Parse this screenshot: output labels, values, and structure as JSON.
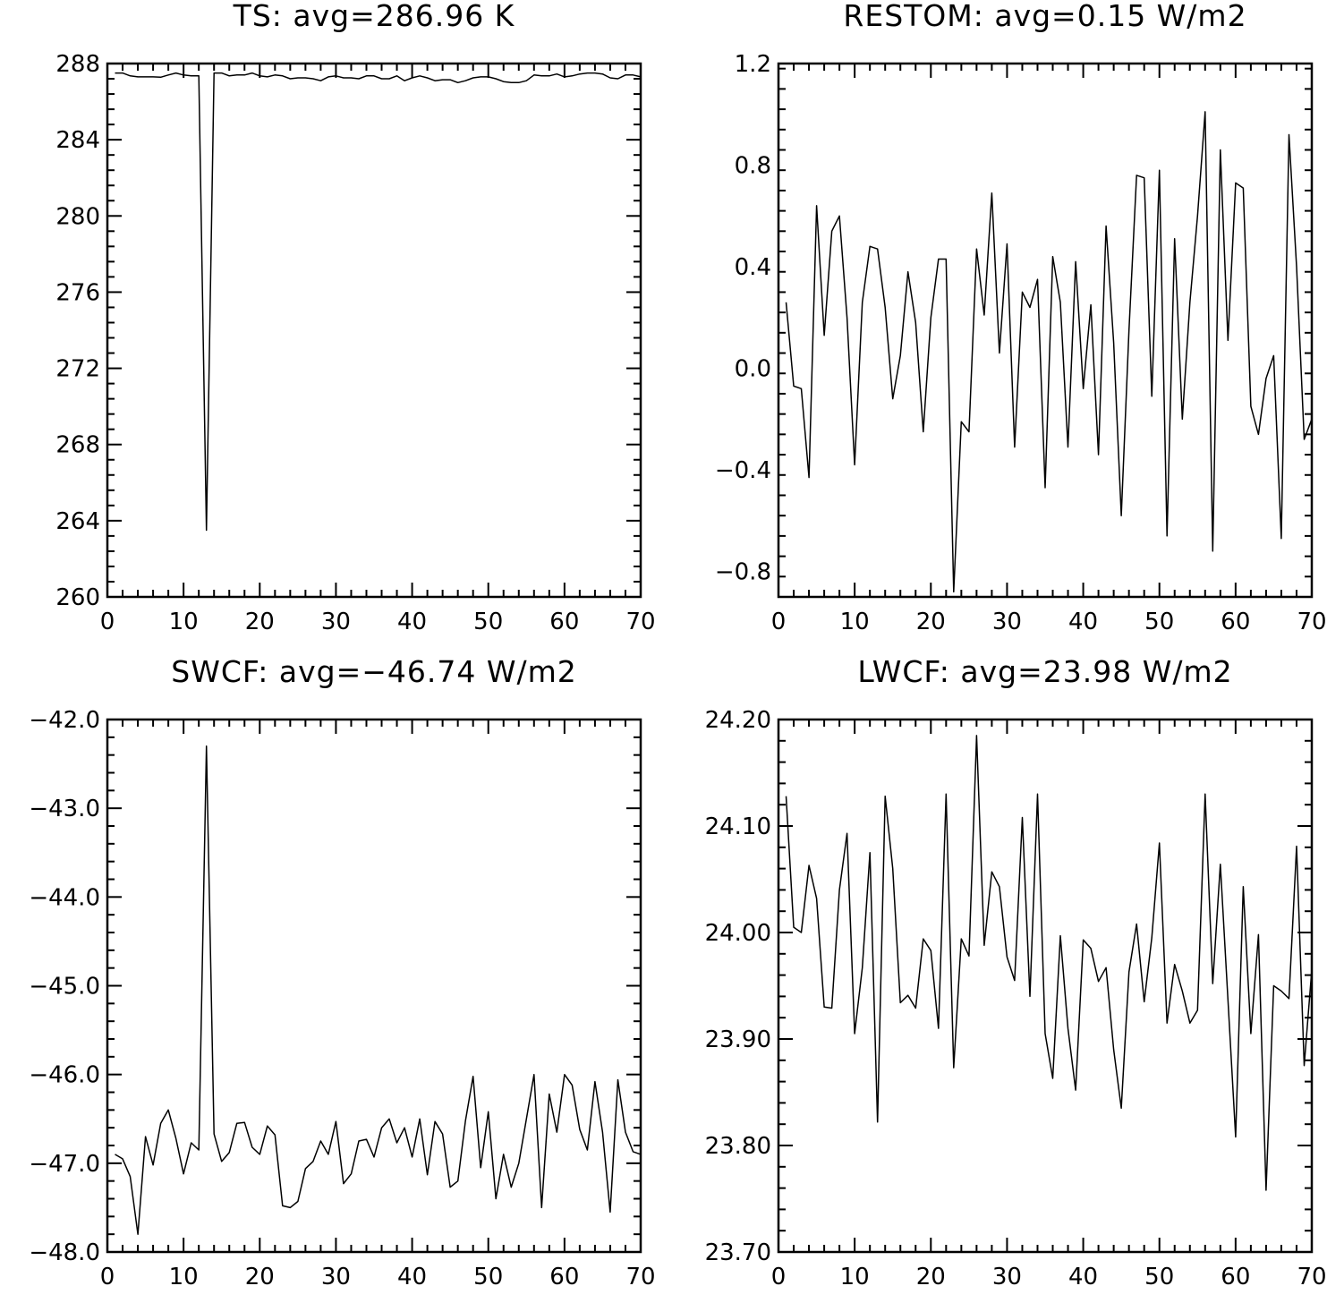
{
  "chart_data": [
    {
      "type": "line",
      "title": "TS: avg=286.96 K",
      "xlim": [
        0,
        70
      ],
      "ylim": [
        260,
        288
      ],
      "x_ticks": [
        "0",
        "10",
        "20",
        "30",
        "40",
        "50",
        "60",
        "70"
      ],
      "y_ticks": [
        "260",
        "264",
        "268",
        "272",
        "276",
        "280",
        "284",
        "288"
      ],
      "x": [
        1,
        2,
        3,
        4,
        5,
        6,
        7,
        8,
        9,
        10,
        11,
        12,
        13,
        14,
        15,
        16,
        17,
        18,
        19,
        20,
        21,
        22,
        23,
        24,
        25,
        26,
        27,
        28,
        29,
        30,
        31,
        32,
        33,
        34,
        35,
        36,
        37,
        38,
        39,
        40,
        41,
        42,
        43,
        44,
        45,
        46,
        47,
        48,
        49,
        50,
        51,
        52,
        53,
        54,
        55,
        56,
        57,
        58,
        59,
        60,
        61,
        62,
        63,
        64,
        65,
        66,
        67,
        68,
        69,
        70
      ],
      "series": [
        {
          "values": [
            287.5,
            287.5,
            287.35,
            287.3,
            287.3,
            287.3,
            287.28,
            287.4,
            287.5,
            287.4,
            287.35,
            287.35,
            263.5,
            287.5,
            287.5,
            287.35,
            287.4,
            287.4,
            287.5,
            287.35,
            287.3,
            287.4,
            287.35,
            287.2,
            287.25,
            287.25,
            287.2,
            287.1,
            287.3,
            287.35,
            287.25,
            287.25,
            287.2,
            287.35,
            287.35,
            287.2,
            287.2,
            287.35,
            287.1,
            287.25,
            287.35,
            287.25,
            287.1,
            287.15,
            287.15,
            287.0,
            287.1,
            287.25,
            287.3,
            287.3,
            287.2,
            287.05,
            287.0,
            287.0,
            287.1,
            287.4,
            287.35,
            287.35,
            287.45,
            287.3,
            287.35,
            287.45,
            287.5,
            287.5,
            287.45,
            287.25,
            287.2,
            287.4,
            287.4,
            287.3
          ]
        }
      ]
    },
    {
      "type": "line",
      "title": "RESTOM: avg=0.15 W/m2",
      "xlim": [
        0,
        70
      ],
      "ylim": [
        -0.9,
        1.2
      ],
      "x_ticks": [
        "0",
        "10",
        "20",
        "30",
        "40",
        "50",
        "60",
        "70"
      ],
      "y_ticks": [
        "−0.8",
        "−0.4",
        "0.0",
        "0.4",
        "0.8",
        "1.2"
      ],
      "x": [
        1,
        2,
        3,
        4,
        5,
        6,
        7,
        8,
        9,
        10,
        11,
        12,
        13,
        14,
        15,
        16,
        17,
        18,
        19,
        20,
        21,
        22,
        23,
        24,
        25,
        26,
        27,
        28,
        29,
        30,
        31,
        32,
        33,
        34,
        35,
        36,
        37,
        38,
        39,
        40,
        41,
        42,
        43,
        44,
        45,
        46,
        47,
        48,
        49,
        50,
        51,
        52,
        53,
        54,
        55,
        56,
        57,
        58,
        59,
        60,
        61,
        62,
        63,
        64,
        65,
        66,
        67,
        68,
        69,
        70
      ],
      "series": [
        {
          "values": [
            0.26,
            -0.07,
            -0.08,
            -0.43,
            0.64,
            0.13,
            0.54,
            0.6,
            0.2,
            -0.38,
            0.26,
            0.48,
            0.47,
            0.24,
            -0.12,
            0.05,
            0.38,
            0.18,
            -0.25,
            0.2,
            0.43,
            0.43,
            -0.88,
            -0.21,
            -0.25,
            0.47,
            0.21,
            0.69,
            0.06,
            0.49,
            -0.31,
            0.3,
            0.24,
            0.35,
            -0.47,
            0.44,
            0.26,
            -0.31,
            0.42,
            -0.08,
            0.25,
            -0.34,
            0.56,
            0.1,
            -0.58,
            0.15,
            0.76,
            0.75,
            -0.11,
            0.78,
            -0.66,
            0.51,
            -0.2,
            0.26,
            0.6,
            1.01,
            -0.72,
            0.86,
            0.11,
            0.73,
            0.71,
            -0.15,
            -0.26,
            -0.04,
            0.05,
            -0.67,
            0.92,
            0.4,
            -0.28,
            -0.2
          ]
        }
      ]
    },
    {
      "type": "line",
      "title": "SWCF: avg=−46.74 W/m2",
      "xlim": [
        0,
        70
      ],
      "ylim": [
        -48,
        -42
      ],
      "x_ticks": [
        "0",
        "10",
        "20",
        "30",
        "40",
        "50",
        "60",
        "70"
      ],
      "y_ticks": [
        "−48.0",
        "−47.0",
        "−46.0",
        "−45.0",
        "−44.0",
        "−43.0",
        "−42.0"
      ],
      "x": [
        1,
        2,
        3,
        4,
        5,
        6,
        7,
        8,
        9,
        10,
        11,
        12,
        13,
        14,
        15,
        16,
        17,
        18,
        19,
        20,
        21,
        22,
        23,
        24,
        25,
        26,
        27,
        28,
        29,
        30,
        31,
        32,
        33,
        34,
        35,
        36,
        37,
        38,
        39,
        40,
        41,
        42,
        43,
        44,
        45,
        46,
        47,
        48,
        49,
        50,
        51,
        52,
        53,
        54,
        55,
        56,
        57,
        58,
        59,
        60,
        61,
        62,
        63,
        64,
        65,
        66,
        67,
        68,
        69,
        70
      ],
      "series": [
        {
          "values": [
            -46.9,
            -46.95,
            -47.15,
            -47.8,
            -46.7,
            -47.02,
            -46.55,
            -46.4,
            -46.72,
            -47.12,
            -46.77,
            -46.85,
            -42.3,
            -46.67,
            -46.98,
            -46.88,
            -46.55,
            -46.54,
            -46.82,
            -46.9,
            -46.58,
            -46.68,
            -47.48,
            -47.5,
            -47.43,
            -47.06,
            -46.98,
            -46.75,
            -46.9,
            -46.53,
            -47.23,
            -47.12,
            -46.75,
            -46.73,
            -46.93,
            -46.6,
            -46.5,
            -46.77,
            -46.6,
            -46.93,
            -46.5,
            -47.13,
            -46.53,
            -46.67,
            -47.27,
            -47.2,
            -46.52,
            -46.02,
            -47.05,
            -46.42,
            -47.4,
            -46.9,
            -47.27,
            -47.0,
            -46.5,
            -46.0,
            -47.5,
            -46.22,
            -46.65,
            -46.0,
            -46.12,
            -46.62,
            -46.85,
            -46.08,
            -46.65,
            -47.55,
            -46.06,
            -46.65,
            -46.87,
            -46.9
          ]
        }
      ]
    },
    {
      "type": "line",
      "title": "LWCF: avg=23.98 W/m2",
      "xlim": [
        0,
        70
      ],
      "ylim": [
        23.7,
        24.2
      ],
      "x_ticks": [
        "0",
        "10",
        "20",
        "30",
        "40",
        "50",
        "60",
        "70"
      ],
      "y_ticks": [
        "23.70",
        "23.80",
        "23.90",
        "24.00",
        "24.10",
        "24.20"
      ],
      "x": [
        1,
        2,
        3,
        4,
        5,
        6,
        7,
        8,
        9,
        10,
        11,
        12,
        13,
        14,
        15,
        16,
        17,
        18,
        19,
        20,
        21,
        22,
        23,
        24,
        25,
        26,
        27,
        28,
        29,
        30,
        31,
        32,
        33,
        34,
        35,
        36,
        37,
        38,
        39,
        40,
        41,
        42,
        43,
        44,
        45,
        46,
        47,
        48,
        49,
        50,
        51,
        52,
        53,
        54,
        55,
        56,
        57,
        58,
        59,
        60,
        61,
        62,
        63,
        64,
        65,
        66,
        67,
        68,
        69,
        70
      ],
      "series": [
        {
          "values": [
            24.128,
            24.005,
            24.0,
            24.063,
            24.032,
            23.93,
            23.929,
            24.04,
            24.093,
            23.905,
            23.967,
            24.075,
            23.822,
            24.128,
            24.06,
            23.934,
            23.941,
            23.929,
            23.994,
            23.983,
            23.91,
            24.13,
            23.873,
            23.994,
            23.978,
            24.185,
            23.988,
            24.057,
            24.043,
            23.977,
            23.955,
            24.108,
            23.94,
            24.13,
            23.905,
            23.863,
            23.997,
            23.91,
            23.852,
            23.993,
            23.985,
            23.954,
            23.967,
            23.89,
            23.835,
            23.963,
            24.008,
            23.935,
            23.995,
            24.084,
            23.915,
            23.97,
            23.945,
            23.915,
            23.927,
            24.13,
            23.952,
            24.064,
            23.937,
            23.808,
            24.043,
            23.905,
            23.998,
            23.758,
            23.95,
            23.945,
            23.938,
            24.081,
            23.875,
            23.965
          ]
        }
      ]
    }
  ]
}
